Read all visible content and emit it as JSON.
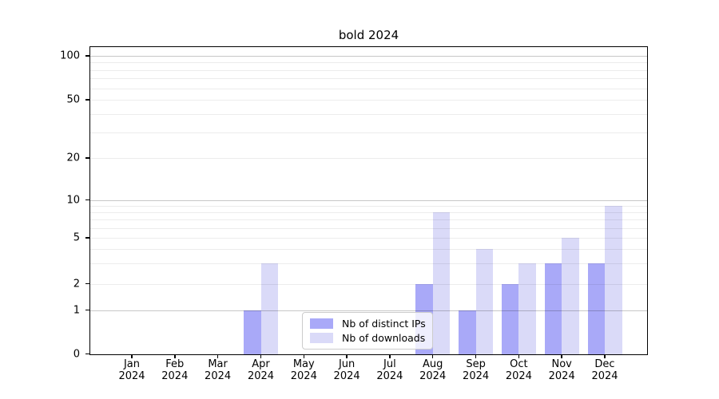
{
  "chart_data": {
    "type": "bar",
    "title": "bold 2024",
    "x_categories": [
      {
        "month": "Jan",
        "year": "2024"
      },
      {
        "month": "Feb",
        "year": "2024"
      },
      {
        "month": "Mar",
        "year": "2024"
      },
      {
        "month": "Apr",
        "year": "2024"
      },
      {
        "month": "May",
        "year": "2024"
      },
      {
        "month": "Jun",
        "year": "2024"
      },
      {
        "month": "Jul",
        "year": "2024"
      },
      {
        "month": "Aug",
        "year": "2024"
      },
      {
        "month": "Sep",
        "year": "2024"
      },
      {
        "month": "Oct",
        "year": "2024"
      },
      {
        "month": "Nov",
        "year": "2024"
      },
      {
        "month": "Dec",
        "year": "2024"
      }
    ],
    "series": [
      {
        "name": "Nb of distinct IPs",
        "color": "#a9a9f8",
        "values": [
          0,
          0,
          0,
          1,
          0,
          0,
          0,
          2,
          1,
          2,
          3,
          3
        ]
      },
      {
        "name": "Nb of downloads",
        "color": "#dadaf8",
        "values": [
          0,
          0,
          0,
          3,
          0,
          0,
          0,
          8,
          4,
          3,
          5,
          9
        ]
      }
    ],
    "yscale": "symlog",
    "ylim": [
      0,
      100
    ],
    "yticks": [
      {
        "value": 0,
        "label": "0"
      },
      {
        "value": 1,
        "label": "1"
      },
      {
        "value": 2,
        "label": "2"
      },
      {
        "value": 5,
        "label": "5"
      },
      {
        "value": 10,
        "label": "10"
      },
      {
        "value": 20,
        "label": "20"
      },
      {
        "value": 50,
        "label": "50"
      },
      {
        "value": 100,
        "label": "100"
      }
    ],
    "minor_gridlines": [
      2,
      3,
      4,
      5,
      6,
      7,
      8,
      9,
      20,
      30,
      40,
      50,
      60,
      70,
      80,
      90
    ],
    "major_gridlines": [
      1,
      10,
      100
    ],
    "grid": true,
    "legend_position": "lower center",
    "colors": {
      "grid_minor": "#ececec",
      "grid_major": "#c7c7c7",
      "axis": "#000000",
      "legend_border": "#cccccc",
      "background": "#ffffff"
    }
  }
}
